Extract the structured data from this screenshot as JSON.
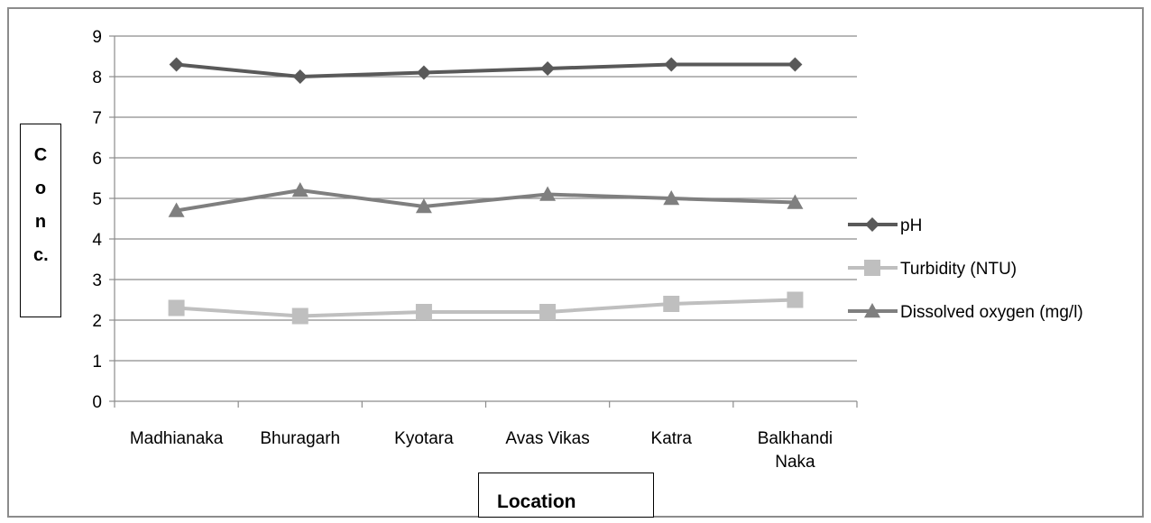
{
  "chart_data": {
    "type": "line",
    "title": "",
    "xlabel": "Location",
    "ylabel": "Conc.",
    "ylim": [
      0,
      9
    ],
    "yticks": [
      0,
      1,
      2,
      3,
      4,
      5,
      6,
      7,
      8,
      9
    ],
    "categories": [
      "Madhianaka",
      "Bhuragarh",
      "Kyotara",
      "Avas Vikas",
      "Katra",
      "Balkhandi Naka"
    ],
    "category_lines": [
      [
        "Madhianaka"
      ],
      [
        "Bhuragarh"
      ],
      [
        "Kyotara"
      ],
      [
        "Avas Vikas"
      ],
      [
        "Katra"
      ],
      [
        "Balkhandi",
        "Naka"
      ]
    ],
    "grid": true,
    "legend_position": "right",
    "series": [
      {
        "name": "pH",
        "values": [
          8.3,
          8.0,
          8.1,
          8.2,
          8.3,
          8.3
        ],
        "color": "#595959",
        "marker": "diamond"
      },
      {
        "name": "Turbidity (NTU)",
        "values": [
          2.3,
          2.1,
          2.2,
          2.2,
          2.4,
          2.5
        ],
        "color": "#bfbfbf",
        "marker": "square"
      },
      {
        "name": "Dissolved oxygen (mg/l)",
        "values": [
          4.7,
          5.2,
          4.8,
          5.1,
          5.0,
          4.9
        ],
        "color": "#7f7f7f",
        "marker": "triangle"
      }
    ]
  }
}
